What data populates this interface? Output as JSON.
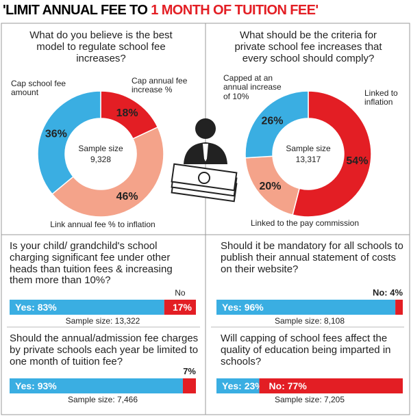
{
  "header": {
    "title_part1": "'LIMIT ANNUAL FEE TO ",
    "title_part2": "1 MONTH OF TUITION FEE'"
  },
  "chart_data": [
    {
      "type": "donut",
      "title": "What do you believe is the best model to regulate school fee increases?",
      "categories": [
        "Cap annual fee increase %",
        "Link annual fee % to inflation",
        "Cap school fee amount"
      ],
      "values": [
        18,
        46,
        36
      ],
      "value_labels": [
        "18%",
        "46%",
        "36%"
      ],
      "colors": [
        "#e31e24",
        "#f4a38a",
        "#3aaee2"
      ],
      "center_label": "Sample size",
      "sample_size": "9,328"
    },
    {
      "type": "donut",
      "title": "What should be the criteria for private school fee increases that every school should comply?",
      "categories": [
        "Linked to inflation",
        "Linked to the pay commission",
        "Capped at an annual increase of 10%"
      ],
      "values": [
        54,
        20,
        26
      ],
      "value_labels": [
        "54%",
        "20%",
        "26%"
      ],
      "colors": [
        "#e31e24",
        "#f4a38a",
        "#3aaee2"
      ],
      "center_label": "Sample size",
      "sample_size": "13,317"
    },
    {
      "type": "stacked-bar",
      "title": "Is your child/ grandchild's school charging significant fee under other heads than tuition fees & increasing them more than 10%?",
      "series": [
        {
          "color": "#3aaee2",
          "values": [
            83
          ],
          "value_labels": [
            "Yes: 83%"
          ]
        },
        {
          "name": "No",
          "color": "#e31e24",
          "values": [
            17
          ],
          "value_labels": [
            "17%"
          ]
        }
      ],
      "sample": "Sample size: 13,322"
    },
    {
      "type": "stacked-bar",
      "title": "Should it be mandatory for all schools to publish their annual statement of costs on their website?",
      "series": [
        {
          "color": "#3aaee2",
          "values": [
            96
          ],
          "value_labels": [
            "Yes: 96%"
          ]
        },
        {
          "color": "#e31e24",
          "values": [
            4
          ],
          "value_labels": [
            "No: 4%"
          ]
        }
      ],
      "sample": "Sample size: 8,108"
    },
    {
      "type": "stacked-bar",
      "title": "Should the annual/admission fee charges by private schools each year be limited to one month of tuition fee?",
      "series": [
        {
          "color": "#3aaee2",
          "values": [
            93
          ],
          "value_labels": [
            "Yes: 93%"
          ]
        },
        {
          "color": "#e31e24",
          "values": [
            7
          ],
          "value_labels": [
            "7%"
          ]
        }
      ],
      "sample": "Sample size: 7,466"
    },
    {
      "type": "stacked-bar",
      "title": "Will capping of school fees affect the quality of education being imparted in schools?",
      "series": [
        {
          "color": "#3aaee2",
          "values": [
            23
          ],
          "value_labels": [
            "Yes: 23%"
          ]
        },
        {
          "color": "#e31e24",
          "values": [
            77
          ],
          "value_labels": [
            "No: 77%"
          ]
        }
      ],
      "sample": "Sample size: 7,205"
    }
  ]
}
